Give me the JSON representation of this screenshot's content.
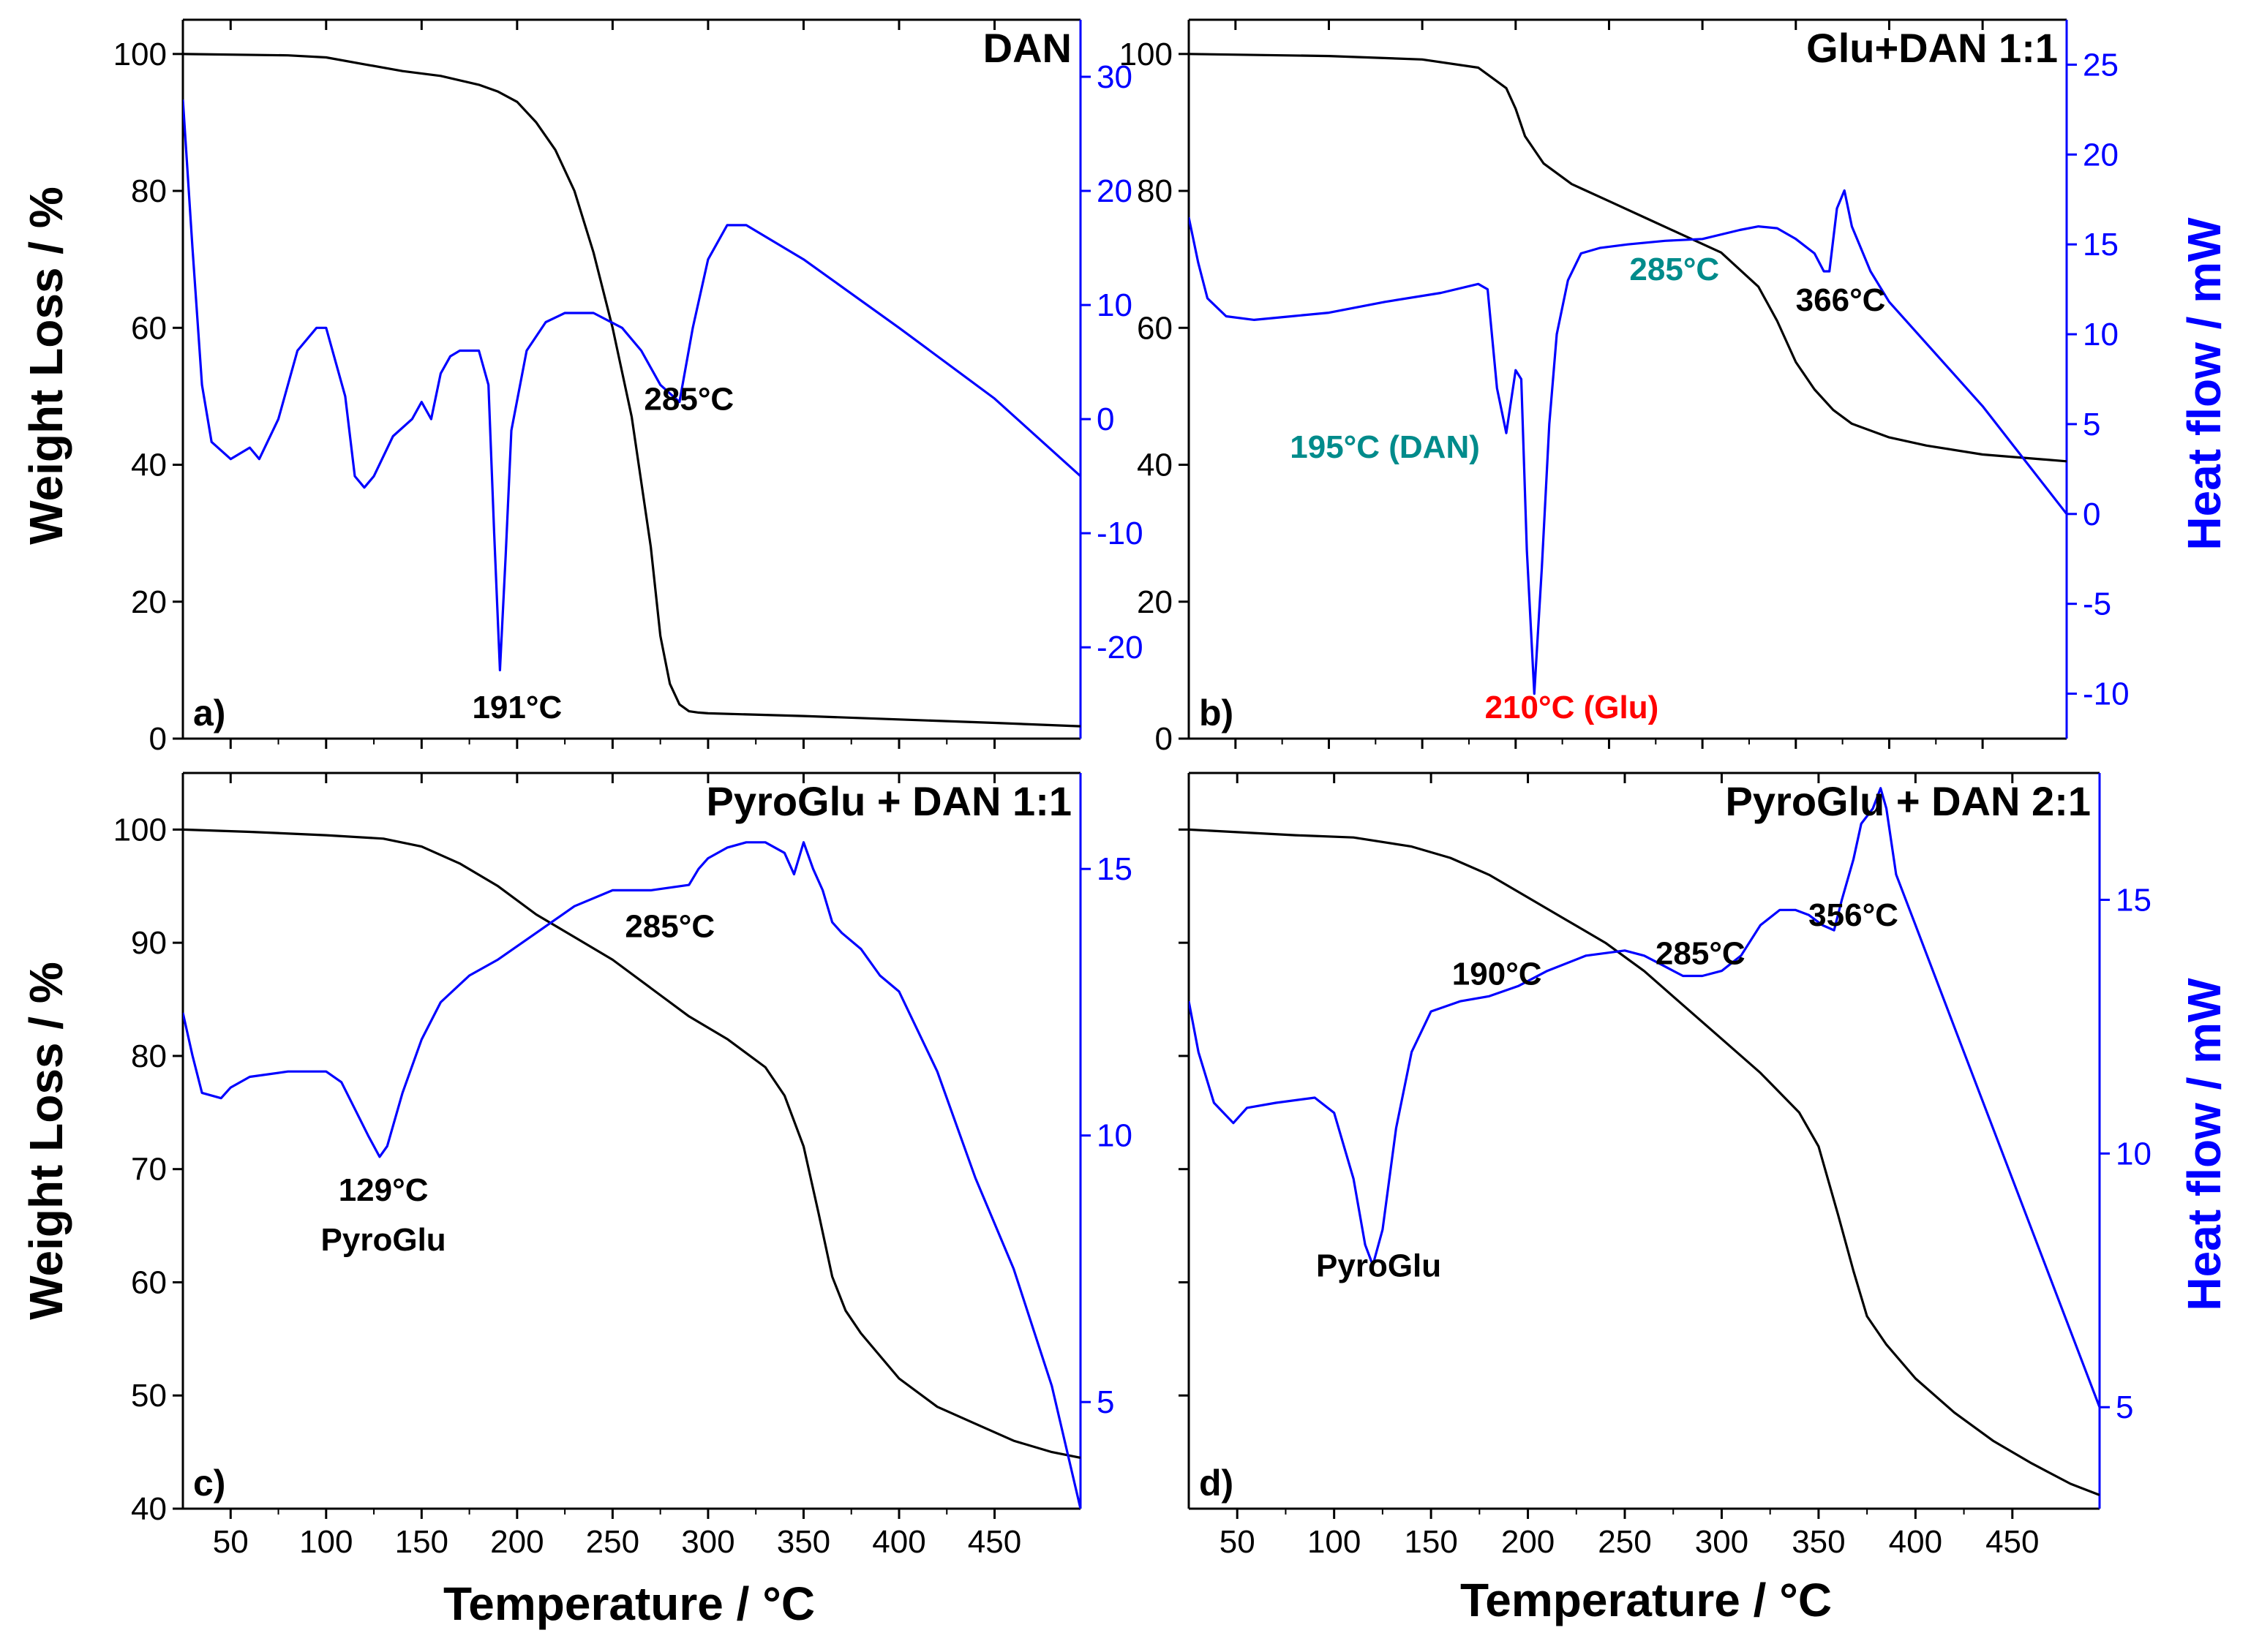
{
  "figure": {
    "x_axis_label": "Temperature / °C",
    "y_left_label": "Weight Loss / %",
    "y_right_label": "Heat flow / mW",
    "colors": {
      "tga": "#000000",
      "dsc": "#0000ff",
      "dan_annot": "#008b8b",
      "glu_annot": "#ff0000"
    }
  },
  "chart_data": [
    {
      "type": "line",
      "id": "a",
      "letter": "a)",
      "title": "DAN",
      "xlim": [
        25,
        495
      ],
      "xticks": [
        50,
        100,
        150,
        200,
        250,
        300,
        350,
        400,
        450
      ],
      "ylim_left": [
        0,
        105
      ],
      "yticks_left": [
        0,
        20,
        40,
        60,
        80,
        100
      ],
      "ylim_right": [
        -28,
        35
      ],
      "yticks_right": [
        -20,
        -10,
        0,
        10,
        20,
        30
      ],
      "series": [
        {
          "name": "TGA",
          "axis": "left",
          "color": "#000000",
          "x": [
            25,
            80,
            100,
            120,
            140,
            160,
            180,
            190,
            200,
            210,
            220,
            230,
            240,
            250,
            260,
            270,
            275,
            280,
            285,
            290,
            295,
            300,
            350,
            400,
            450,
            495
          ],
          "y": [
            100,
            99.8,
            99.5,
            98.5,
            97.5,
            96.8,
            95.5,
            94.5,
            93,
            90,
            86,
            80,
            71,
            60,
            47,
            28,
            15,
            8,
            5,
            4,
            3.8,
            3.7,
            3.3,
            2.8,
            2.3,
            1.8
          ]
        },
        {
          "name": "DSC",
          "axis": "right",
          "color": "#0000ff",
          "x": [
            25,
            30,
            35,
            40,
            50,
            60,
            65,
            75,
            85,
            95,
            100,
            110,
            115,
            120,
            125,
            135,
            145,
            150,
            155,
            160,
            165,
            170,
            180,
            185,
            188,
            191,
            194,
            197,
            205,
            215,
            225,
            240,
            255,
            265,
            275,
            285,
            292,
            300,
            310,
            320,
            350,
            400,
            450,
            495
          ],
          "y": [
            28,
            15,
            3,
            -2,
            -3.5,
            -2.5,
            -3.5,
            0,
            6,
            8,
            8,
            2,
            -5,
            -6,
            -5,
            -1.5,
            0,
            1.5,
            0,
            4,
            5.5,
            6,
            6,
            3,
            -10,
            -22,
            -12,
            -1,
            6,
            8.5,
            9.3,
            9.3,
            8,
            6,
            3,
            1.5,
            8,
            14,
            17,
            17,
            14,
            8,
            1.8,
            -5
          ]
        }
      ],
      "annotations": [
        {
          "text": "285°C",
          "x": 290,
          "y_left": 48,
          "color": "#000000"
        },
        {
          "text": "191°C",
          "x": 200,
          "y_left": 3,
          "color": "#000000"
        }
      ]
    },
    {
      "type": "line",
      "id": "b",
      "letter": "b)",
      "title": "Glu+DAN 1:1",
      "xlim": [
        25,
        495
      ],
      "xticks": [
        50,
        100,
        150,
        200,
        250,
        300,
        350,
        400,
        450
      ],
      "ylim_left": [
        0,
        105
      ],
      "yticks_left": [
        0,
        20,
        40,
        60,
        80,
        100
      ],
      "ylim_right": [
        -12.5,
        27.5
      ],
      "yticks_right": [
        -10,
        -5,
        0,
        5,
        10,
        15,
        20,
        25
      ],
      "series": [
        {
          "name": "TGA",
          "axis": "left",
          "color": "#000000",
          "x": [
            25,
            100,
            150,
            180,
            195,
            200,
            205,
            210,
            215,
            230,
            250,
            270,
            290,
            310,
            330,
            340,
            350,
            360,
            370,
            380,
            400,
            420,
            450,
            495
          ],
          "y": [
            100,
            99.7,
            99.2,
            98,
            95,
            92,
            88,
            86,
            84,
            81,
            78.5,
            76,
            73.5,
            71,
            66,
            61,
            55,
            51,
            48,
            46,
            44,
            42.8,
            41.5,
            40.5
          ]
        },
        {
          "name": "DSC",
          "axis": "right",
          "color": "#0000ff",
          "x": [
            25,
            30,
            35,
            45,
            60,
            80,
            100,
            130,
            160,
            180,
            185,
            190,
            195,
            200,
            203,
            206,
            210,
            214,
            218,
            222,
            228,
            235,
            245,
            260,
            280,
            300,
            320,
            330,
            340,
            350,
            360,
            365,
            368,
            372,
            376,
            380,
            390,
            400,
            450,
            495
          ],
          "y": [
            16.5,
            14,
            12,
            11,
            10.8,
            11,
            11.2,
            11.8,
            12.3,
            12.8,
            12.5,
            7,
            4.5,
            8,
            7.5,
            -2,
            -10,
            -3,
            5,
            10,
            13,
            14.5,
            14.8,
            15,
            15.2,
            15.3,
            15.8,
            16,
            15.9,
            15.3,
            14.5,
            13.5,
            13.5,
            17,
            18,
            16,
            13.5,
            11.8,
            6,
            0
          ]
        }
      ],
      "annotations": [
        {
          "text": "285°C",
          "x": 285,
          "y_left": 67,
          "color": "#008b8b"
        },
        {
          "text": "366°C",
          "x": 374,
          "y_left": 62.5,
          "color": "#000000"
        },
        {
          "text": "195°C (DAN)",
          "x": 130,
          "y_left": 41,
          "color": "#008b8b"
        },
        {
          "text": "210°C (Glu)",
          "x": 230,
          "y_left": 3,
          "color": "#ff0000"
        }
      ]
    },
    {
      "type": "line",
      "id": "c",
      "letter": "c)",
      "title": "PyroGlu + DAN 1:1",
      "xlim": [
        25,
        495
      ],
      "xticks": [
        50,
        100,
        150,
        200,
        250,
        300,
        350,
        400,
        450
      ],
      "ylim_left": [
        40,
        105
      ],
      "yticks_left": [
        40,
        50,
        60,
        70,
        80,
        90,
        100
      ],
      "ylim_right": [
        3,
        16.8
      ],
      "yticks_right": [
        5,
        10,
        15
      ],
      "series": [
        {
          "name": "TGA",
          "axis": "left",
          "color": "#000000",
          "x": [
            25,
            60,
            100,
            130,
            150,
            170,
            190,
            210,
            230,
            250,
            270,
            290,
            310,
            330,
            340,
            350,
            358,
            365,
            372,
            380,
            400,
            420,
            440,
            460,
            480,
            495
          ],
          "y": [
            100,
            99.8,
            99.5,
            99.2,
            98.5,
            97,
            95,
            92.5,
            90.5,
            88.5,
            86,
            83.5,
            81.5,
            79,
            76.5,
            72,
            66,
            60.5,
            57.5,
            55.5,
            51.5,
            49,
            47.5,
            46,
            45,
            44.5
          ]
        },
        {
          "name": "DSC",
          "axis": "right",
          "color": "#0000ff",
          "x": [
            25,
            30,
            35,
            45,
            50,
            60,
            80,
            100,
            108,
            115,
            122,
            128,
            132,
            140,
            150,
            160,
            175,
            190,
            210,
            230,
            250,
            270,
            290,
            295,
            300,
            310,
            320,
            330,
            340,
            345,
            350,
            355,
            360,
            365,
            370,
            380,
            390,
            400,
            420,
            440,
            460,
            480,
            495
          ],
          "y": [
            12.3,
            11.5,
            10.8,
            10.7,
            10.9,
            11.1,
            11.2,
            11.2,
            11,
            10.5,
            10,
            9.6,
            9.8,
            10.8,
            11.8,
            12.5,
            13,
            13.3,
            13.8,
            14.3,
            14.6,
            14.6,
            14.7,
            15,
            15.2,
            15.4,
            15.5,
            15.5,
            15.3,
            14.9,
            15.5,
            15,
            14.6,
            14,
            13.8,
            13.5,
            13,
            12.7,
            11.2,
            9.2,
            7.5,
            5.3,
            3
          ]
        }
      ],
      "annotations": [
        {
          "text": "285°C",
          "x": 280,
          "y_left": 90.5,
          "color": "#000000"
        },
        {
          "text": "129°C",
          "x": 130,
          "y_left": 67.2,
          "color": "#000000"
        },
        {
          "text": "PyroGlu",
          "x": 130,
          "y_left": 62.8,
          "color": "#000000"
        }
      ]
    },
    {
      "type": "line",
      "id": "d",
      "letter": "d)",
      "title": "PyroGlu + DAN 2:1",
      "xlim": [
        25,
        495
      ],
      "xticks": [
        50,
        100,
        150,
        200,
        250,
        300,
        350,
        400,
        450
      ],
      "ylim_left": [
        40,
        105
      ],
      "yticks_left": [],
      "ylim_right": [
        3,
        17.5
      ],
      "yticks_right": [
        5,
        10,
        15
      ],
      "series": [
        {
          "name": "TGA",
          "axis": "left",
          "color": "#000000",
          "x": [
            25,
            80,
            110,
            140,
            160,
            180,
            200,
            220,
            240,
            260,
            280,
            300,
            320,
            340,
            350,
            360,
            368,
            375,
            385,
            400,
            420,
            440,
            460,
            480,
            495
          ],
          "y": [
            100,
            99.5,
            99.3,
            98.5,
            97.5,
            96,
            94,
            92,
            90,
            87.5,
            84.5,
            81.5,
            78.5,
            75,
            72,
            66,
            61,
            57,
            54.5,
            51.5,
            48.5,
            46,
            44,
            42.2,
            41.2
          ]
        },
        {
          "name": "DSC",
          "axis": "right",
          "color": "#0000ff",
          "x": [
            25,
            30,
            38,
            48,
            55,
            70,
            90,
            100,
            110,
            116,
            120,
            125,
            132,
            140,
            150,
            165,
            180,
            195,
            210,
            230,
            250,
            260,
            270,
            280,
            290,
            300,
            310,
            320,
            330,
            338,
            345,
            352,
            358,
            362,
            368,
            372,
            378,
            382,
            385,
            390,
            400,
            420,
            440,
            460,
            480,
            495
          ],
          "y": [
            13,
            12,
            11,
            10.6,
            10.9,
            11,
            11.1,
            10.8,
            9.5,
            8.2,
            7.8,
            8.5,
            10.5,
            12,
            12.8,
            13,
            13.1,
            13.3,
            13.6,
            13.9,
            14,
            13.9,
            13.7,
            13.5,
            13.5,
            13.6,
            13.9,
            14.5,
            14.8,
            14.8,
            14.7,
            14.5,
            14.4,
            15,
            15.8,
            16.5,
            16.8,
            17.2,
            16.8,
            15.5,
            14.5,
            12.5,
            10.5,
            8.5,
            6.5,
            5
          ]
        }
      ],
      "annotations": [
        {
          "text": "356°C",
          "x": 368,
          "y_left": 91.5,
          "color": "#000000"
        },
        {
          "text": "190°C",
          "x": 184,
          "y_left": 86.3,
          "color": "#000000"
        },
        {
          "text": "285°C",
          "x": 289,
          "y_left": 88.1,
          "color": "#000000"
        },
        {
          "text": "PyroGlu",
          "x": 123,
          "y_left": 60.5,
          "color": "#000000"
        }
      ]
    }
  ]
}
